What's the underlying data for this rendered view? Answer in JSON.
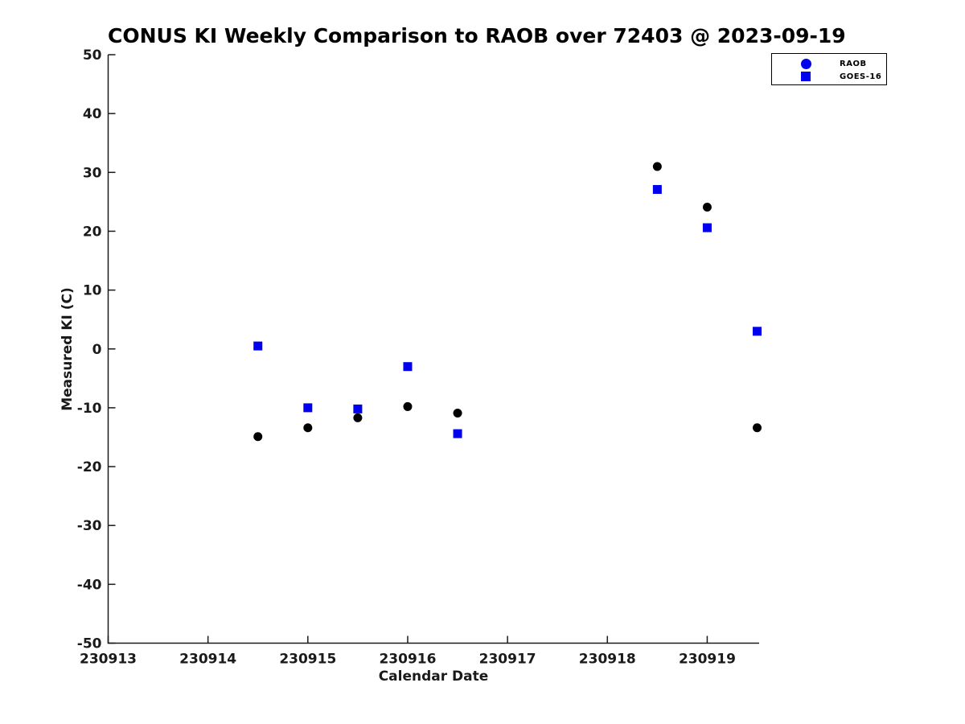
{
  "title": "CONUS KI Weekly Comparison to RAOB over 72403 @ 2023-09-19",
  "axes": {
    "xlabel": "Calendar Date",
    "ylabel": "Measured KI (C)"
  },
  "legend": {
    "items": [
      {
        "label": "RAOB",
        "marker": "circle-icon",
        "color": "#0000ee"
      },
      {
        "label": "GOES-16",
        "marker": "square-icon",
        "color": "#0000ee"
      }
    ]
  },
  "colors": {
    "marker_blue": "#0000ee",
    "marker_black": "#000000",
    "axis": "#1a1a1a",
    "background": "#ffffff"
  },
  "chart_data": {
    "type": "scatter",
    "title": "CONUS KI Weekly Comparison to RAOB over 72403 @ 2023-09-19",
    "xlabel": "Calendar Date",
    "ylabel": "Measured KI (C)",
    "xlim": [
      230913,
      230919.52
    ],
    "ylim": [
      -50,
      50
    ],
    "x_ticks": [
      230913,
      230914,
      230915,
      230916,
      230917,
      230918,
      230919
    ],
    "y_ticks": [
      -50,
      -40,
      -30,
      -20,
      -10,
      0,
      10,
      20,
      30,
      40,
      50
    ],
    "grid": false,
    "legend_position": "top-right",
    "x": [
      230914.5,
      230915.0,
      230915.5,
      230916.0,
      230916.5,
      230918.5,
      230919.0,
      230919.5
    ],
    "series": [
      {
        "name": "RAOB",
        "marker": "circle",
        "marker_color": "#000000",
        "legend_marker_color": "#0000ee",
        "values": [
          -14.9,
          -13.4,
          -11.7,
          -9.8,
          -10.9,
          31.0,
          24.1,
          -13.4
        ]
      },
      {
        "name": "GOES-16",
        "marker": "square",
        "marker_color": "#0000ee",
        "legend_marker_color": "#0000ee",
        "values": [
          0.5,
          -10.0,
          -10.2,
          -3.0,
          -14.4,
          27.1,
          20.6,
          3.0
        ]
      }
    ]
  }
}
